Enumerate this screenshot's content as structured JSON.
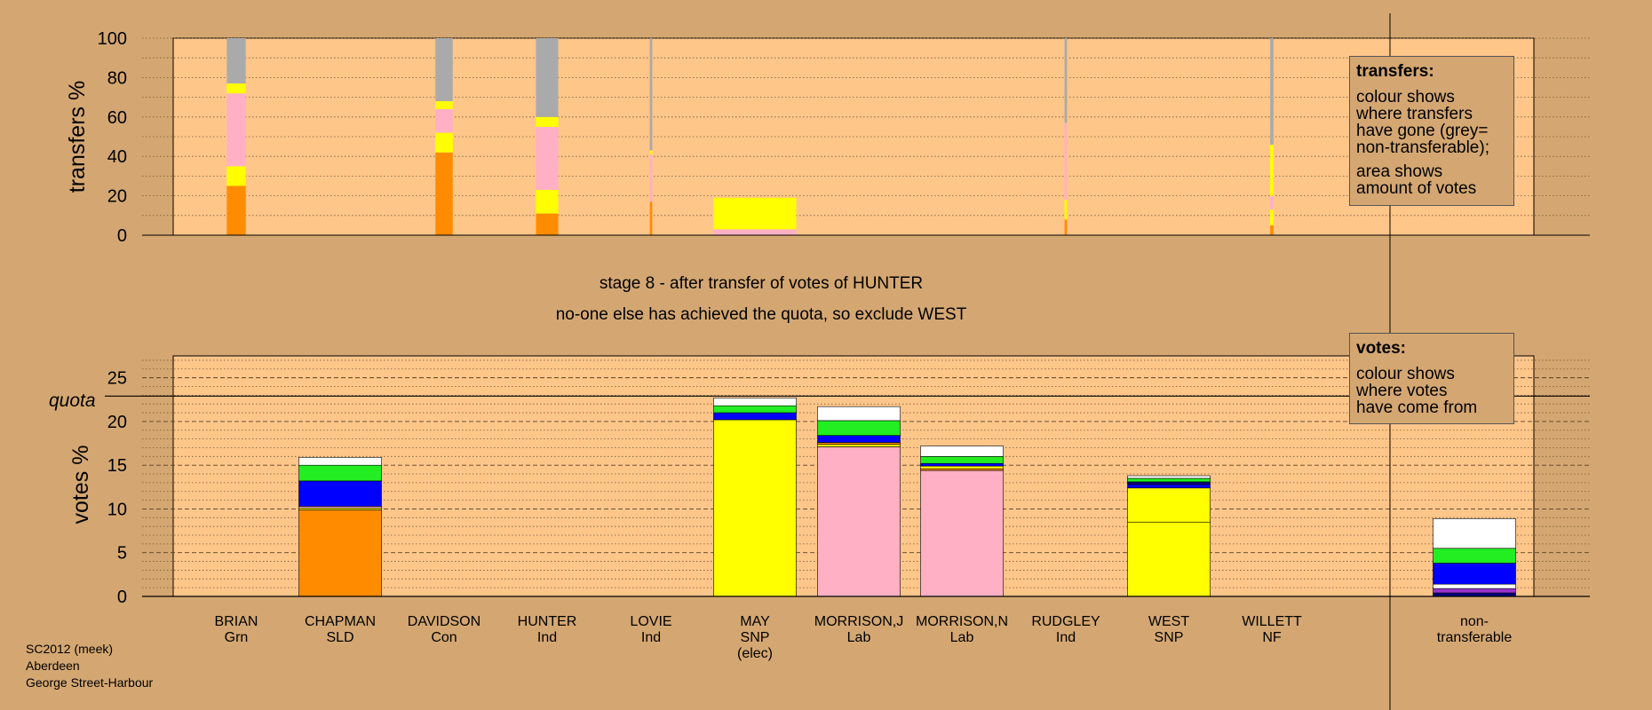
{
  "stage_title": "stage 8 - after transfer of votes of HUNTER",
  "stage_subtitle": "no-one else has achieved the quota, so exclude WEST",
  "transfers_legend": {
    "title": "transfers:",
    "line1": "colour shows\nwhere transfers\nhave gone (grey=\nnon-transferable);",
    "line2": "area shows\namount of votes"
  },
  "votes_legend": {
    "title": "votes:",
    "line1": "colour shows\nwhere votes\nhave come from"
  },
  "footer": {
    "line1": "SC2012 (meek)",
    "line2": "Aberdeen",
    "line3": "George Street-Harbour"
  },
  "colors": {
    "background": "#d4a772",
    "plot_bg": "#ffc68a",
    "orange": "#ff8c00",
    "yellow": "#ffff00",
    "pink": "#ffb0c4",
    "grey": "#aaaaaa",
    "blue": "#0000ff",
    "green": "#22ee22",
    "white": "#ffffff",
    "purple": "#9933cc",
    "navy": "#000080"
  },
  "chart_data": [
    {
      "type": "bar",
      "stacked": true,
      "ylabel": "transfers %",
      "ylim": [
        0,
        100
      ],
      "yticks": [
        0,
        20,
        40,
        60,
        80,
        100
      ],
      "grid": "dotted every 10",
      "categories": [
        "BRIAN",
        "CHAPMAN",
        "DAVIDSON",
        "HUNTER",
        "LOVIE",
        "MAY",
        "MORRISON,J",
        "MORRISON,N",
        "RUDGLEY",
        "WEST",
        "WILLETT",
        "non-transferable"
      ],
      "bars": [
        {
          "category": "BRIAN",
          "width_share": 0.23,
          "segments": [
            {
              "color": "orange",
              "value": 25
            },
            {
              "color": "yellow",
              "value": 10
            },
            {
              "color": "pink",
              "value": 37
            },
            {
              "color": "yellow",
              "value": 5
            },
            {
              "color": "grey",
              "value": 23
            }
          ]
        },
        {
          "category": "DAVIDSON",
          "width_share": 0.21,
          "segments": [
            {
              "color": "orange",
              "value": 42
            },
            {
              "color": "yellow",
              "value": 10
            },
            {
              "color": "pink",
              "value": 12
            },
            {
              "color": "yellow",
              "value": 4
            },
            {
              "color": "grey",
              "value": 32
            }
          ]
        },
        {
          "category": "HUNTER",
          "width_share": 0.27,
          "segments": [
            {
              "color": "orange",
              "value": 11
            },
            {
              "color": "yellow",
              "value": 12
            },
            {
              "color": "pink",
              "value": 32
            },
            {
              "color": "yellow",
              "value": 5
            },
            {
              "color": "grey",
              "value": 40
            }
          ]
        },
        {
          "category": "LOVIE",
          "width_share": 0.03,
          "segments": [
            {
              "color": "orange",
              "value": 17
            },
            {
              "color": "pink",
              "value": 24
            },
            {
              "color": "yellow",
              "value": 2
            },
            {
              "color": "grey",
              "value": 57
            }
          ]
        },
        {
          "category": "MAY",
          "width_share": 1.0,
          "segments": [
            {
              "color": "pink",
              "value": 3
            },
            {
              "color": "yellow",
              "value": 16
            }
          ]
        },
        {
          "category": "RUDGLEY",
          "width_share": 0.03,
          "segments": [
            {
              "color": "orange",
              "value": 8
            },
            {
              "color": "yellow",
              "value": 10
            },
            {
              "color": "pink",
              "value": 39
            },
            {
              "color": "grey",
              "value": 43
            }
          ]
        },
        {
          "category": "WILLETT",
          "width_share": 0.04,
          "segments": [
            {
              "color": "orange",
              "value": 5
            },
            {
              "color": "yellow",
              "value": 8
            },
            {
              "color": "pink",
              "value": 7
            },
            {
              "color": "yellow",
              "value": 26
            },
            {
              "color": "grey",
              "value": 54
            }
          ]
        }
      ]
    },
    {
      "type": "bar",
      "stacked": true,
      "ylabel": "votes %",
      "ylim": [
        0,
        27.5
      ],
      "yticks": [
        0,
        5,
        10,
        15,
        20,
        25
      ],
      "quota": 22.9,
      "quota_label": "quota",
      "grid": "dashed every 5, dotted every 1",
      "categories": [
        {
          "name": "BRIAN",
          "party": "Grn"
        },
        {
          "name": "CHAPMAN",
          "party": "SLD"
        },
        {
          "name": "DAVIDSON",
          "party": "Con"
        },
        {
          "name": "HUNTER",
          "party": "Ind"
        },
        {
          "name": "LOVIE",
          "party": "Ind"
        },
        {
          "name": "MAY",
          "party": "SNP",
          "note": "(elec)"
        },
        {
          "name": "MORRISON,J",
          "party": "Lab"
        },
        {
          "name": "MORRISON,N",
          "party": "Lab"
        },
        {
          "name": "RUDGLEY",
          "party": "Ind"
        },
        {
          "name": "WEST",
          "party": "SNP"
        },
        {
          "name": "WILLETT",
          "party": "NF"
        },
        {
          "name": "non-\ntransferable",
          "party": ""
        }
      ],
      "bars": [
        {
          "category": "CHAPMAN",
          "segments": [
            {
              "color": "orange",
              "value": 9.9
            },
            {
              "color": "yellow",
              "value": 0.2
            },
            {
              "color": "pink",
              "value": 0.2
            },
            {
              "color": "blue",
              "value": 2.9
            },
            {
              "color": "green",
              "value": 1.8
            },
            {
              "color": "white",
              "value": 0.9
            }
          ]
        },
        {
          "category": "MAY",
          "segments": [
            {
              "color": "yellow",
              "value": 20.2
            },
            {
              "color": "blue",
              "value": 0.8
            },
            {
              "color": "green",
              "value": 0.8
            },
            {
              "color": "white",
              "value": 0.9
            }
          ]
        },
        {
          "category": "MORRISON,J",
          "segments": [
            {
              "color": "pink",
              "value": 17.1
            },
            {
              "color": "yellow",
              "value": 0.3
            },
            {
              "color": "orange",
              "value": 0.2
            },
            {
              "color": "blue",
              "value": 0.8
            },
            {
              "color": "green",
              "value": 1.7
            },
            {
              "color": "white",
              "value": 1.6
            }
          ]
        },
        {
          "category": "MORRISON,N",
          "segments": [
            {
              "color": "pink",
              "value": 14.4
            },
            {
              "color": "orange",
              "value": 0.2
            },
            {
              "color": "yellow",
              "value": 0.3
            },
            {
              "color": "blue",
              "value": 0.3
            },
            {
              "color": "green",
              "value": 0.8
            },
            {
              "color": "white",
              "value": 1.2
            }
          ]
        },
        {
          "category": "WEST",
          "segments": [
            {
              "color": "yellow",
              "value": 8.5
            },
            {
              "color": "yellow",
              "value": 3.9
            },
            {
              "color": "blue",
              "value": 0.4
            },
            {
              "color": "navy",
              "value": 0.3
            },
            {
              "color": "green",
              "value": 0.4
            },
            {
              "color": "white",
              "value": 0.3
            }
          ]
        },
        {
          "category": "non-\ntransferable",
          "segments": [
            {
              "color": "navy",
              "value": 0.4
            },
            {
              "color": "purple",
              "value": 0.5
            },
            {
              "color": "white",
              "value": 0.5
            },
            {
              "color": "blue",
              "value": 2.4
            },
            {
              "color": "green",
              "value": 1.7
            },
            {
              "color": "white",
              "value": 3.4
            }
          ]
        }
      ]
    }
  ]
}
